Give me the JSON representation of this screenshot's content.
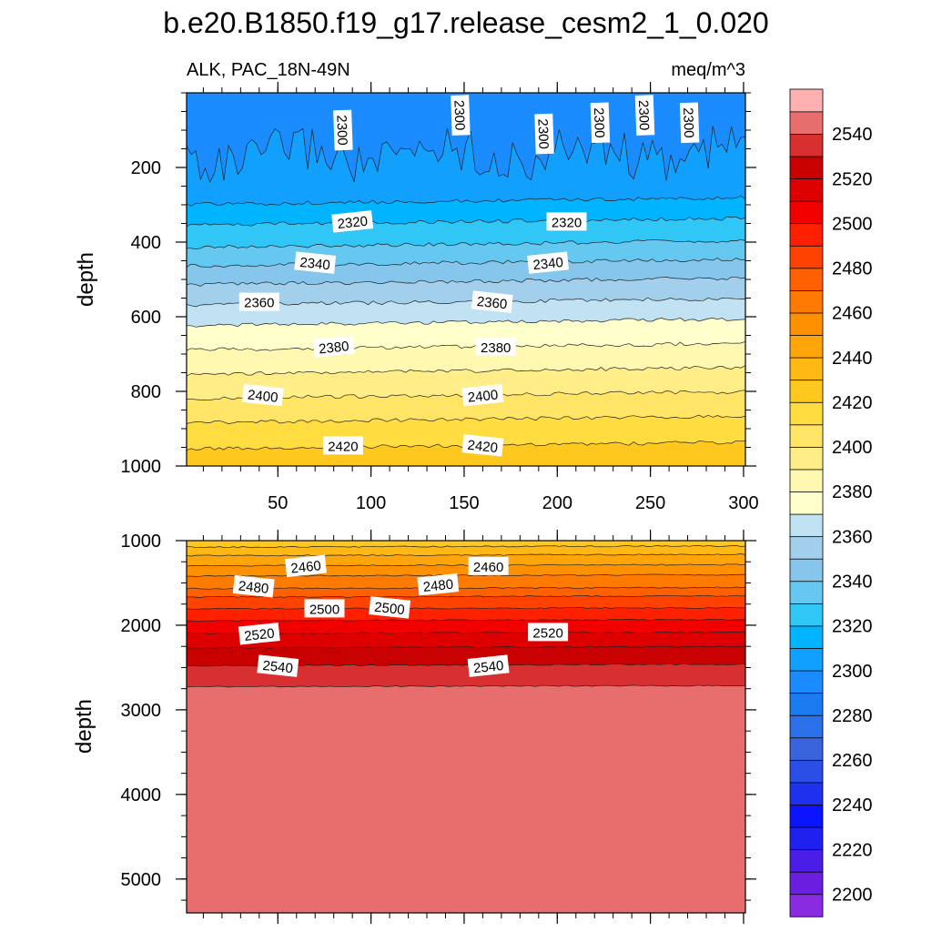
{
  "chart_data": {
    "type": "contour",
    "title": "b.e20.B1850.f19_g17.release_cesm2_1_0.020",
    "left_subtitle": "ALK, PAC_18N-49N",
    "right_subtitle": "meq/m^3",
    "units": "meq/m^3",
    "colorbar": {
      "levels": [
        2200,
        2210,
        2220,
        2230,
        2240,
        2250,
        2260,
        2270,
        2280,
        2290,
        2300,
        2310,
        2320,
        2330,
        2340,
        2350,
        2360,
        2370,
        2380,
        2390,
        2400,
        2410,
        2420,
        2430,
        2440,
        2450,
        2460,
        2470,
        2480,
        2490,
        2500,
        2510,
        2520,
        2530,
        2540,
        2550
      ],
      "tick_labels": [
        "2200",
        "2220",
        "2240",
        "2260",
        "2280",
        "2300",
        "2320",
        "2340",
        "2360",
        "2380",
        "2400",
        "2420",
        "2440",
        "2460",
        "2480",
        "2500",
        "2520",
        "2540"
      ],
      "colors": [
        "#8a2be2",
        "#6a1ee0",
        "#4b1ee8",
        "#2020f0",
        "#0a14ff",
        "#1e32ee",
        "#2a4ee6",
        "#3a64dc",
        "#2a70e8",
        "#1a7cf0",
        "#1a8cff",
        "#12a0ff",
        "#00b4ff",
        "#30c6f5",
        "#64c8f0",
        "#86c6ec",
        "#a2d0ec",
        "#c0e2f2",
        "#ffffcc",
        "#fff8b0",
        "#ffee88",
        "#ffe466",
        "#ffdc40",
        "#ffc81e",
        "#ffb814",
        "#ffa50a",
        "#ff9000",
        "#ff7a00",
        "#ff6000",
        "#ff4200",
        "#ff2000",
        "#f20000",
        "#de0000",
        "#c80000",
        "#d83030",
        "#e86e6e",
        "#ffb0b0"
      ]
    },
    "panels": [
      {
        "name": "upper",
        "xlabel": "",
        "ylabel": "depth",
        "x_range": [
          1,
          301
        ],
        "y_range": [
          0,
          1000
        ],
        "x_ticks": [
          50,
          100,
          150,
          200,
          250,
          300
        ],
        "y_ticks": [
          200,
          400,
          600,
          800,
          1000
        ],
        "contours": [
          {
            "level": 2300,
            "depth": 210
          },
          {
            "level": 2310,
            "depth": 290
          },
          {
            "level": 2320,
            "depth": 345
          },
          {
            "level": 2330,
            "depth": 405
          },
          {
            "level": 2340,
            "depth": 455
          },
          {
            "level": 2350,
            "depth": 505
          },
          {
            "level": 2360,
            "depth": 560
          },
          {
            "level": 2370,
            "depth": 615
          },
          {
            "level": 2380,
            "depth": 680
          },
          {
            "level": 2390,
            "depth": 745
          },
          {
            "level": 2400,
            "depth": 810
          },
          {
            "level": 2410,
            "depth": 875
          },
          {
            "level": 2420,
            "depth": 945
          }
        ],
        "contour_labels": [
          {
            "text": "2300",
            "x": 85,
            "depth": 100
          },
          {
            "text": "2300",
            "x": 148,
            "depth": 60
          },
          {
            "text": "2300",
            "x": 193,
            "depth": 110
          },
          {
            "text": "2300",
            "x": 223,
            "depth": 80
          },
          {
            "text": "2300",
            "x": 247,
            "depth": 60
          },
          {
            "text": "2300",
            "x": 271,
            "depth": 80
          },
          {
            "text": "2320",
            "x": 90,
            "depth": 345
          },
          {
            "text": "2320",
            "x": 205,
            "depth": 345
          },
          {
            "text": "2340",
            "x": 70,
            "depth": 455
          },
          {
            "text": "2340",
            "x": 195,
            "depth": 455
          },
          {
            "text": "2360",
            "x": 40,
            "depth": 560
          },
          {
            "text": "2360",
            "x": 165,
            "depth": 560
          },
          {
            "text": "2380",
            "x": 80,
            "depth": 680
          },
          {
            "text": "2380",
            "x": 167,
            "depth": 680
          },
          {
            "text": "2400",
            "x": 42,
            "depth": 810
          },
          {
            "text": "2400",
            "x": 160,
            "depth": 810
          },
          {
            "text": "2420",
            "x": 85,
            "depth": 945
          },
          {
            "text": "2420",
            "x": 160,
            "depth": 945
          }
        ]
      },
      {
        "name": "lower",
        "xlabel": "",
        "ylabel": "depth",
        "x_range": [
          1,
          301
        ],
        "y_range": [
          1000,
          5400
        ],
        "x_ticks": [
          50,
          100,
          150,
          200,
          250,
          300
        ],
        "y_ticks": [
          1000,
          2000,
          3000,
          4000,
          5000
        ],
        "contours": [
          {
            "level": 2430,
            "depth": 1070
          },
          {
            "level": 2440,
            "depth": 1170
          },
          {
            "level": 2450,
            "depth": 1290
          },
          {
            "level": 2460,
            "depth": 1410
          },
          {
            "level": 2470,
            "depth": 1560
          },
          {
            "level": 2480,
            "depth": 1660
          },
          {
            "level": 2490,
            "depth": 1800
          },
          {
            "level": 2500,
            "depth": 1940
          },
          {
            "level": 2510,
            "depth": 2090
          },
          {
            "level": 2520,
            "depth": 2260
          },
          {
            "level": 2530,
            "depth": 2470
          },
          {
            "level": 2540,
            "depth": 2720
          }
        ],
        "contour_labels": [
          {
            "text": "2460",
            "x": 65,
            "depth": 1300
          },
          {
            "text": "2460",
            "x": 163,
            "depth": 1300
          },
          {
            "text": "2480",
            "x": 37,
            "depth": 1540
          },
          {
            "text": "2480",
            "x": 136,
            "depth": 1520
          },
          {
            "text": "2500",
            "x": 75,
            "depth": 1800
          },
          {
            "text": "2500",
            "x": 110,
            "depth": 1790
          },
          {
            "text": "2520",
            "x": 40,
            "depth": 2100
          },
          {
            "text": "2520",
            "x": 195,
            "depth": 2080
          },
          {
            "text": "2540",
            "x": 50,
            "depth": 2480
          },
          {
            "text": "2540",
            "x": 163,
            "depth": 2480
          }
        ]
      }
    ]
  }
}
